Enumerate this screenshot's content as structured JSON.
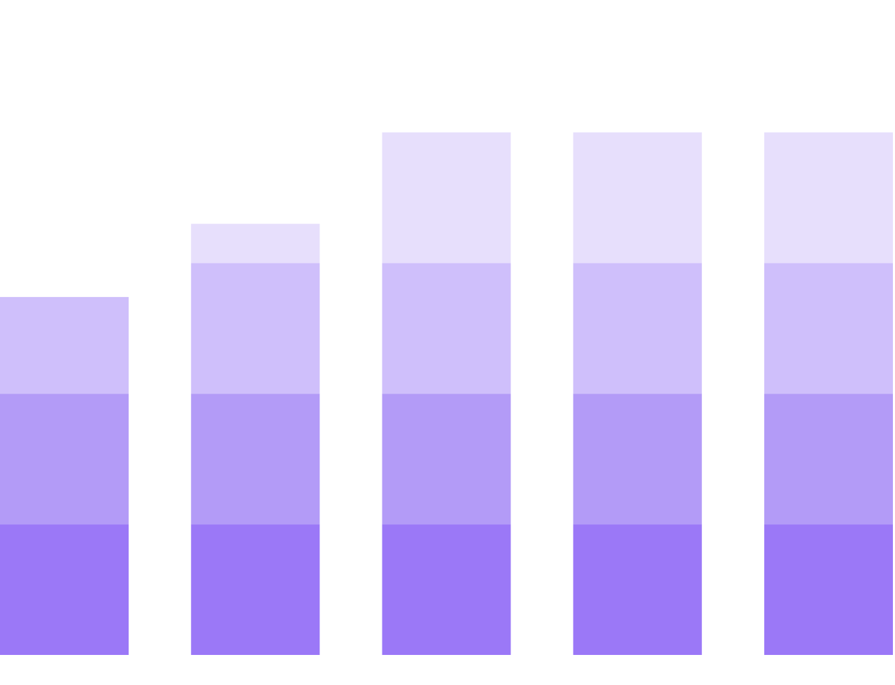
{
  "chart_data": {
    "type": "bar",
    "stacked": true,
    "categories": [
      "",
      "",
      "",
      "",
      ""
    ],
    "series": [
      {
        "values": [
          1,
          1,
          1,
          1,
          1
        ],
        "color": "#9b78f7"
      },
      {
        "values": [
          1,
          1,
          1,
          1,
          1
        ],
        "color": "#b39bf7"
      },
      {
        "values": [
          0.74,
          1,
          1,
          1,
          1
        ],
        "color": "#cfbffb"
      },
      {
        "values": [
          0,
          0.3,
          1,
          1,
          1
        ],
        "color": "#e7dffc"
      }
    ],
    "ylim": [
      0,
      4.2
    ],
    "grid": false,
    "legend": "none",
    "axes_visible": false
  }
}
